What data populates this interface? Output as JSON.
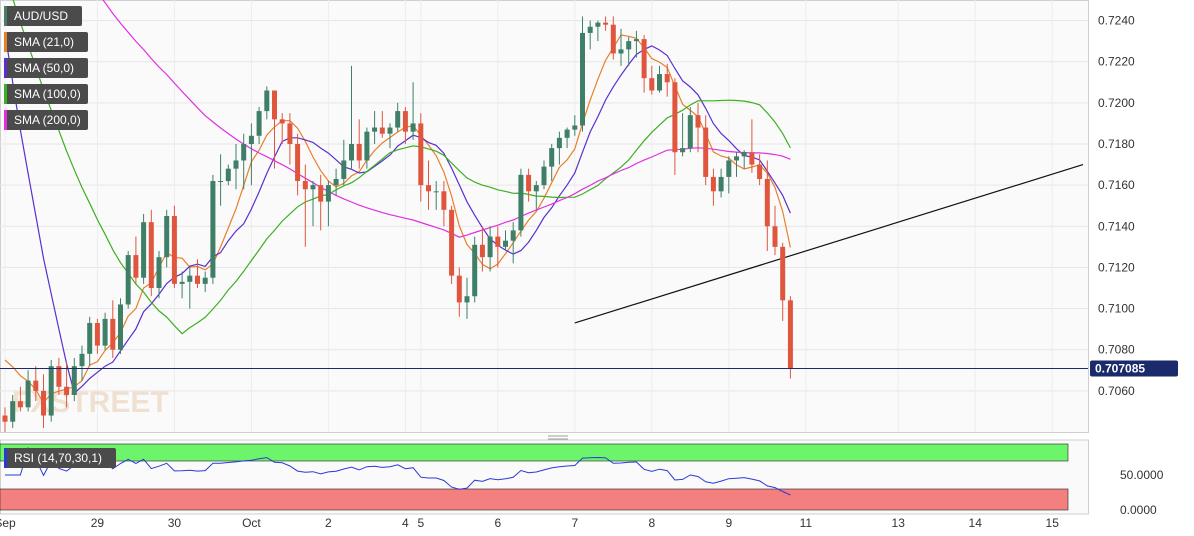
{
  "chart_data": {
    "type": "candlestick",
    "symbol": "AUD/USD",
    "price_axis": {
      "min": 0.704,
      "max": 0.725,
      "ticks": [
        "0.7240",
        "0.7220",
        "0.7200",
        "0.7180",
        "0.7160",
        "0.7140",
        "0.7120",
        "0.7100",
        "0.7080",
        "0.7060"
      ]
    },
    "current_price": {
      "label": "0.707085",
      "value": 0.707085
    },
    "x_labels": [
      {
        "label": "Sep",
        "i": 0
      },
      {
        "label": "29",
        "i": 12
      },
      {
        "label": "30",
        "i": 22
      },
      {
        "label": "Oct",
        "i": 32
      },
      {
        "label": "2",
        "i": 42
      },
      {
        "label": "4",
        "i": 52
      },
      {
        "label": "5",
        "i": 54
      },
      {
        "label": "6",
        "i": 64
      },
      {
        "label": "7",
        "i": 74
      },
      {
        "label": "8",
        "i": 84
      },
      {
        "label": "9",
        "i": 94
      },
      {
        "label": "11",
        "i": 104
      },
      {
        "label": "13",
        "i": 116
      },
      {
        "label": "14",
        "i": 126
      },
      {
        "label": "15",
        "i": 136
      }
    ],
    "legend": [
      {
        "label": "AUD/USD",
        "color": "#4a7c66"
      },
      {
        "label": "SMA (21,0)",
        "color": "#e8802a"
      },
      {
        "label": "SMA (50,0)",
        "color": "#5a2fd0"
      },
      {
        "label": "SMA (100,0)",
        "color": "#3cb020"
      },
      {
        "label": "SMA (200,0)",
        "color": "#e030e0"
      }
    ],
    "candles": [
      [
        0.7048,
        0.7052,
        0.704,
        0.7045
      ],
      [
        0.7045,
        0.7058,
        0.7042,
        0.7055
      ],
      [
        0.7055,
        0.7062,
        0.705,
        0.7052
      ],
      [
        0.7052,
        0.707,
        0.705,
        0.7065
      ],
      [
        0.7065,
        0.7072,
        0.7055,
        0.706
      ],
      [
        0.706,
        0.7068,
        0.7042,
        0.7048
      ],
      [
        0.7048,
        0.7075,
        0.7045,
        0.7072
      ],
      [
        0.7072,
        0.7076,
        0.7058,
        0.7062
      ],
      [
        0.7062,
        0.7074,
        0.7052,
        0.7058
      ],
      [
        0.7058,
        0.7076,
        0.7055,
        0.7072
      ],
      [
        0.7072,
        0.7082,
        0.7065,
        0.7078
      ],
      [
        0.7078,
        0.7096,
        0.7072,
        0.7093
      ],
      [
        0.7093,
        0.7095,
        0.7078,
        0.7082
      ],
      [
        0.7082,
        0.7098,
        0.708,
        0.7095
      ],
      [
        0.7095,
        0.7104,
        0.7076,
        0.708
      ],
      [
        0.708,
        0.7105,
        0.7078,
        0.7102
      ],
      [
        0.7102,
        0.7128,
        0.71,
        0.7126
      ],
      [
        0.7126,
        0.7135,
        0.7112,
        0.7115
      ],
      [
        0.7115,
        0.7146,
        0.7112,
        0.7142
      ],
      [
        0.7142,
        0.7148,
        0.7106,
        0.711
      ],
      [
        0.711,
        0.7128,
        0.7105,
        0.7125
      ],
      [
        0.7125,
        0.7148,
        0.712,
        0.7145
      ],
      [
        0.7145,
        0.715,
        0.711,
        0.7112
      ],
      [
        0.7112,
        0.7118,
        0.7105,
        0.7113
      ],
      [
        0.7113,
        0.712,
        0.71,
        0.7116
      ],
      [
        0.7116,
        0.7124,
        0.711,
        0.7112
      ],
      [
        0.7112,
        0.7118,
        0.7108,
        0.7115
      ],
      [
        0.7115,
        0.7165,
        0.7112,
        0.7162
      ],
      [
        0.7162,
        0.7175,
        0.715,
        0.7162
      ],
      [
        0.7162,
        0.717,
        0.716,
        0.7168
      ],
      [
        0.7168,
        0.718,
        0.7158,
        0.7172
      ],
      [
        0.7172,
        0.7185,
        0.7158,
        0.718
      ],
      [
        0.718,
        0.719,
        0.716,
        0.7184
      ],
      [
        0.7184,
        0.7198,
        0.718,
        0.7196
      ],
      [
        0.7196,
        0.7208,
        0.7192,
        0.7206
      ],
      [
        0.7206,
        0.7206,
        0.7168,
        0.7192
      ],
      [
        0.7192,
        0.7195,
        0.718,
        0.719
      ],
      [
        0.719,
        0.7195,
        0.717,
        0.718
      ],
      [
        0.718,
        0.7185,
        0.7155,
        0.7162
      ],
      [
        0.7162,
        0.717,
        0.713,
        0.7158
      ],
      [
        0.7158,
        0.7162,
        0.714,
        0.716
      ],
      [
        0.716,
        0.7165,
        0.7138,
        0.7152
      ],
      [
        0.7152,
        0.7162,
        0.714,
        0.716
      ],
      [
        0.716,
        0.7168,
        0.7155,
        0.7163
      ],
      [
        0.7163,
        0.7182,
        0.716,
        0.7172
      ],
      [
        0.7172,
        0.7218,
        0.7168,
        0.718
      ],
      [
        0.718,
        0.7192,
        0.7168,
        0.7172
      ],
      [
        0.7172,
        0.7188,
        0.7168,
        0.7186
      ],
      [
        0.7186,
        0.7196,
        0.718,
        0.7188
      ],
      [
        0.7188,
        0.7196,
        0.7183,
        0.7185
      ],
      [
        0.7185,
        0.719,
        0.7178,
        0.7188
      ],
      [
        0.7188,
        0.72,
        0.7186,
        0.7196
      ],
      [
        0.7196,
        0.7198,
        0.718,
        0.7186
      ],
      [
        0.7186,
        0.721,
        0.7182,
        0.719
      ],
      [
        0.719,
        0.7195,
        0.7152,
        0.716
      ],
      [
        0.716,
        0.7172,
        0.7148,
        0.7157
      ],
      [
        0.7157,
        0.7162,
        0.7148,
        0.7157
      ],
      [
        0.7157,
        0.7162,
        0.714,
        0.7148
      ],
      [
        0.7148,
        0.715,
        0.7112,
        0.7116
      ],
      [
        0.7116,
        0.712,
        0.7096,
        0.7103
      ],
      [
        0.7103,
        0.7115,
        0.7095,
        0.7106
      ],
      [
        0.7106,
        0.7135,
        0.7103,
        0.7131
      ],
      [
        0.7131,
        0.714,
        0.7118,
        0.7125
      ],
      [
        0.7125,
        0.714,
        0.7118,
        0.7135
      ],
      [
        0.7135,
        0.714,
        0.712,
        0.713
      ],
      [
        0.713,
        0.7138,
        0.7128,
        0.7133
      ],
      [
        0.7133,
        0.7142,
        0.7122,
        0.7138
      ],
      [
        0.7138,
        0.7168,
        0.7135,
        0.7165
      ],
      [
        0.7165,
        0.7168,
        0.7152,
        0.7157
      ],
      [
        0.7157,
        0.7162,
        0.7148,
        0.716
      ],
      [
        0.716,
        0.7172,
        0.7158,
        0.7169
      ],
      [
        0.7169,
        0.718,
        0.7162,
        0.7178
      ],
      [
        0.7178,
        0.7186,
        0.717,
        0.7183
      ],
      [
        0.7183,
        0.7188,
        0.7178,
        0.7187
      ],
      [
        0.7187,
        0.7194,
        0.7184,
        0.7189
      ],
      [
        0.7189,
        0.7242,
        0.7186,
        0.7234
      ],
      [
        0.7234,
        0.724,
        0.7226,
        0.7237
      ],
      [
        0.7237,
        0.724,
        0.723,
        0.7239
      ],
      [
        0.7239,
        0.7242,
        0.7235,
        0.7238
      ],
      [
        0.7238,
        0.7242,
        0.7221,
        0.7224
      ],
      [
        0.7224,
        0.7236,
        0.7218,
        0.7226
      ],
      [
        0.7226,
        0.7232,
        0.7218,
        0.723
      ],
      [
        0.723,
        0.7235,
        0.7222,
        0.7231
      ],
      [
        0.7231,
        0.7233,
        0.7205,
        0.7212
      ],
      [
        0.7212,
        0.7218,
        0.7204,
        0.7206
      ],
      [
        0.7206,
        0.7218,
        0.7205,
        0.7214
      ],
      [
        0.7214,
        0.7219,
        0.7203,
        0.721
      ],
      [
        0.721,
        0.7212,
        0.7165,
        0.7176
      ],
      [
        0.7176,
        0.7195,
        0.7174,
        0.7178
      ],
      [
        0.7178,
        0.7198,
        0.7176,
        0.7194
      ],
      [
        0.7194,
        0.72,
        0.7176,
        0.7188
      ],
      [
        0.7188,
        0.7194,
        0.716,
        0.7164
      ],
      [
        0.7164,
        0.7168,
        0.715,
        0.7157
      ],
      [
        0.7157,
        0.7168,
        0.7154,
        0.7164
      ],
      [
        0.7164,
        0.7174,
        0.7156,
        0.7172
      ],
      [
        0.7172,
        0.7176,
        0.7164,
        0.7174
      ],
      [
        0.7174,
        0.7177,
        0.7168,
        0.7176
      ],
      [
        0.7176,
        0.7192,
        0.7166,
        0.717
      ],
      [
        0.717,
        0.7175,
        0.716,
        0.7163
      ],
      [
        0.7163,
        0.7172,
        0.7128,
        0.714
      ],
      [
        0.714,
        0.715,
        0.7126,
        0.713
      ],
      [
        0.713,
        0.7132,
        0.7094,
        0.7104
      ],
      [
        0.7104,
        0.7106,
        0.7066,
        0.7071
      ]
    ],
    "trendline": {
      "from": {
        "i": 74,
        "price": 0.7093
      },
      "to": {
        "i": 140,
        "price": 0.717
      }
    },
    "rsi": {
      "label": "RSI (14,70,30,1)",
      "ticks": [
        "50.0000",
        "0.0000"
      ],
      "overbought": 70,
      "oversold": 30
    }
  }
}
